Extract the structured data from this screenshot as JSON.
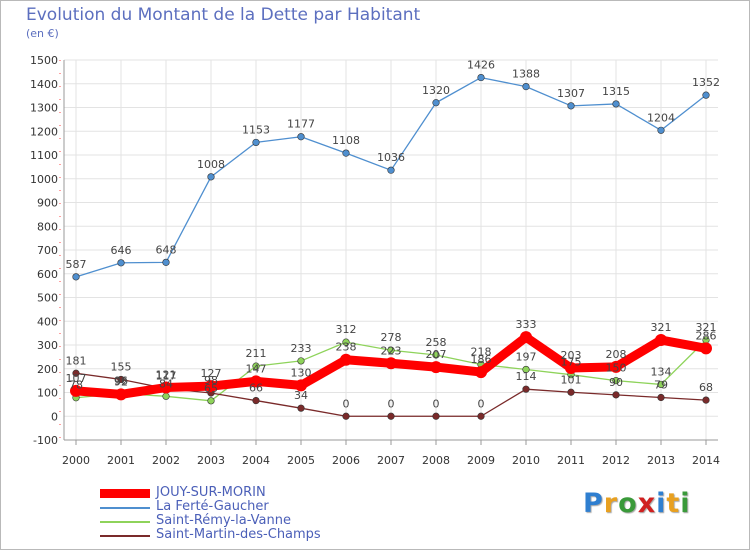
{
  "header": {
    "title": "Evolution du Montant de la Dette par Habitant",
    "subtitle": "(en €)"
  },
  "chart_data": {
    "type": "line",
    "title": "Evolution du Montant de la Dette par Habitant",
    "ylabel": "(en €)",
    "xlabel": "",
    "x": [
      "2000",
      "2001",
      "2002",
      "2003",
      "2004",
      "2005",
      "2006",
      "2007",
      "2008",
      "2009",
      "2010",
      "2011",
      "2012",
      "2013",
      "2014"
    ],
    "yticks": [
      "-100",
      "0",
      "100",
      "200",
      "300",
      "400",
      "500",
      "600",
      "700",
      "800",
      "900",
      "1000",
      "1100",
      "1200",
      "1300",
      "1400",
      "1500"
    ],
    "ylim": [
      -100,
      1500
    ],
    "grid": true,
    "legend_position": "bottom-left",
    "series": [
      {
        "name": "La Ferté-Gaucher",
        "color": "#4f8fcf",
        "values": [
          587,
          646,
          648,
          1008,
          1153,
          1177,
          1108,
          1036,
          1320,
          1426,
          1388,
          1307,
          1315,
          1204,
          1352
        ],
        "labels": [
          "587",
          "646",
          "648",
          "1008",
          "1153",
          "1177",
          "1108",
          "1036",
          "1320",
          "1426",
          "1388",
          "1307",
          "1315",
          "1204",
          "1352"
        ]
      },
      {
        "name": "Saint-Rémy-la-Vanne",
        "color": "#8ed35a",
        "values": [
          78,
          96,
          84,
          65,
          211,
          233,
          312,
          278,
          258,
          218,
          197,
          175,
          150,
          134,
          321
        ],
        "labels": [
          "78",
          "96",
          "84",
          "65",
          "211",
          "233",
          "312",
          "278",
          "258",
          "218",
          "197",
          "175",
          "150",
          "134",
          "321"
        ]
      },
      {
        "name": "Saint-Martin-des-Champs",
        "color": "#7a2a2a",
        "values": [
          181,
          155,
          117,
          98,
          66,
          34,
          0,
          0,
          0,
          0,
          114,
          101,
          90,
          79,
          68
        ],
        "labels": [
          "181",
          "155",
          "117",
          "98",
          "66",
          "34",
          "0",
          "0",
          "0",
          "0",
          "114",
          "101",
          "90",
          "79",
          "68"
        ]
      },
      {
        "name": "JOUY-SUR-MORIN",
        "color": "#ff0000",
        "values": [
          107,
          92,
          121,
          127,
          147,
          130,
          238,
          223,
          207,
          186,
          333,
          203,
          208,
          321,
          286
        ],
        "labels": [
          "107",
          "92",
          "121",
          "127",
          "147",
          "130",
          "238",
          "223",
          "207",
          "186",
          "333",
          "203",
          "208",
          "321",
          "286"
        ]
      }
    ]
  },
  "legend": [
    {
      "label": "JOUY-SUR-MORIN",
      "color": "#ff0000"
    },
    {
      "label": "La Ferté-Gaucher",
      "color": "#4f8fcf"
    },
    {
      "label": "Saint-Rémy-la-Vanne",
      "color": "#8ed35a"
    },
    {
      "label": "Saint-Martin-des-Champs",
      "color": "#7a2a2a"
    }
  ],
  "brand": {
    "text": "Proxiti",
    "colors": [
      "#2f7fd0",
      "#e8a020",
      "#3a9a3a",
      "#d02020",
      "#2f7fd0",
      "#e8a020",
      "#3a9a3a"
    ]
  }
}
